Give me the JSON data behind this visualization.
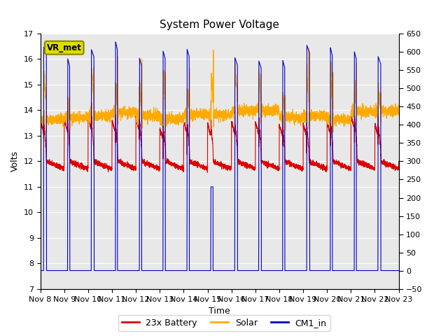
{
  "title": "System Power Voltage",
  "xlabel": "Time",
  "ylabel_left": "Volts",
  "ylim_left": [
    7.0,
    17.0
  ],
  "ylim_right": [
    -50,
    650
  ],
  "yticks_left": [
    7.0,
    8.0,
    9.0,
    10.0,
    11.0,
    12.0,
    13.0,
    14.0,
    15.0,
    16.0,
    17.0
  ],
  "yticks_right": [
    -50,
    0,
    50,
    100,
    150,
    200,
    250,
    300,
    350,
    400,
    450,
    500,
    550,
    600,
    650
  ],
  "xtick_labels": [
    "Nov 8",
    "Nov 9",
    "Nov 10",
    "Nov 11",
    "Nov 12",
    "Nov 13",
    "Nov 14",
    "Nov 15",
    "Nov 16",
    "Nov 17",
    "Nov 18",
    "Nov 19",
    "Nov 20",
    "Nov 21",
    "Nov 22",
    "Nov 23"
  ],
  "bg_plot": "#e8e8e8",
  "bg_fig": "#ffffff",
  "col_battery": "#dd0000",
  "col_solar": "#ffaa00",
  "col_cm1": "#0000cc",
  "lbl_battery": "23x Battery",
  "lbl_solar": "Solar",
  "lbl_cm1": "CM1_in",
  "vr_met": "VR_met",
  "n_days": 15,
  "pts_per_day": 288
}
